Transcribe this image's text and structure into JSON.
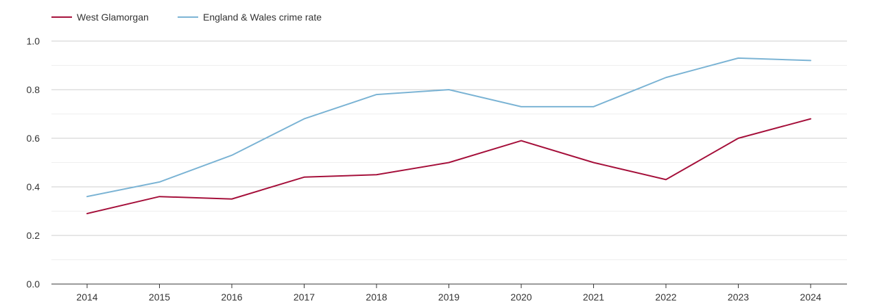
{
  "chart_data": {
    "type": "line",
    "title": "",
    "xlabel": "",
    "ylabel": "",
    "categories": [
      "2014",
      "2015",
      "2016",
      "2017",
      "2018",
      "2019",
      "2020",
      "2021",
      "2022",
      "2023",
      "2024"
    ],
    "series": [
      {
        "name": "West Glamorgan",
        "color": "#a50f3a",
        "values": [
          0.29,
          0.36,
          0.35,
          0.44,
          0.45,
          0.5,
          0.59,
          0.5,
          0.43,
          0.6,
          0.68
        ]
      },
      {
        "name": "England & Wales crime rate",
        "color": "#7ab3d4",
        "values": [
          0.36,
          0.42,
          0.53,
          0.68,
          0.78,
          0.8,
          0.73,
          0.73,
          0.85,
          0.93,
          0.92
        ]
      }
    ],
    "ylim": [
      0,
      1.0
    ],
    "yticks": [
      "0.0",
      "0.2",
      "0.4",
      "0.6",
      "0.8",
      "1.0"
    ],
    "grid": true,
    "legend_position": "top-left"
  }
}
